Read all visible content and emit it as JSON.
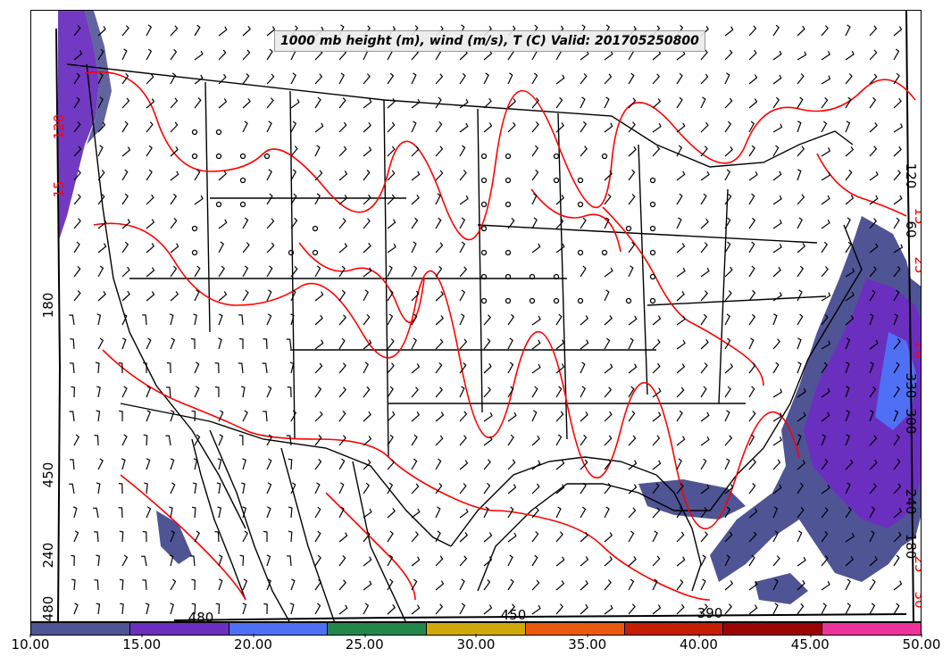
{
  "title": "1000 mb height (m), wind (m/s), T (C) Valid: 201705250800",
  "colorbar": {
    "ticks": [
      "10.00",
      "15.00",
      "20.00",
      "25.00",
      "30.00",
      "35.00",
      "40.00",
      "45.00",
      "50.00"
    ],
    "colors": [
      "#4f5494",
      "#6a2fbf",
      "#4f6ff5",
      "#23874b",
      "#cfa90a",
      "#ea5a0c",
      "#c41f05",
      "#9a0406",
      "#ee3399"
    ]
  },
  "height_contour_labels": [
    {
      "id": "w-180",
      "text": "180"
    },
    {
      "id": "w-450",
      "text": "450"
    },
    {
      "id": "w-240",
      "text": "240"
    },
    {
      "id": "w-480",
      "text": "480"
    },
    {
      "id": "b-480",
      "text": "480"
    },
    {
      "id": "b-450",
      "text": "450"
    },
    {
      "id": "b-390",
      "text": "390"
    },
    {
      "id": "e-120",
      "text": "120"
    },
    {
      "id": "e-60",
      "text": "60"
    },
    {
      "id": "e-330",
      "text": "330"
    },
    {
      "id": "e-300",
      "text": "300"
    },
    {
      "id": "e-240",
      "text": "240"
    },
    {
      "id": "e-180",
      "text": "180"
    }
  ],
  "temperature_contour_labels": [
    {
      "id": "t-w1",
      "text": "120"
    },
    {
      "id": "t-w2",
      "text": "15"
    },
    {
      "id": "t-e1",
      "text": "15"
    },
    {
      "id": "t-e2",
      "text": "25"
    },
    {
      "id": "t-e3",
      "text": "20"
    },
    {
      "id": "t-e4",
      "text": "25"
    },
    {
      "id": "t-e5",
      "text": "30"
    }
  ],
  "colors": {
    "temperature_contour": "#ff0000",
    "height_contour": "#000000",
    "borders": "#000000",
    "wind_barbs": "#000000"
  },
  "shaded_regions": [
    {
      "name": "pacific-northwest-coast",
      "level": "15.00-20.00"
    },
    {
      "name": "atlantic-coast",
      "level": "15.00-25.00"
    },
    {
      "name": "gulf-of-mexico",
      "level": "10.00-15.00"
    }
  ]
}
